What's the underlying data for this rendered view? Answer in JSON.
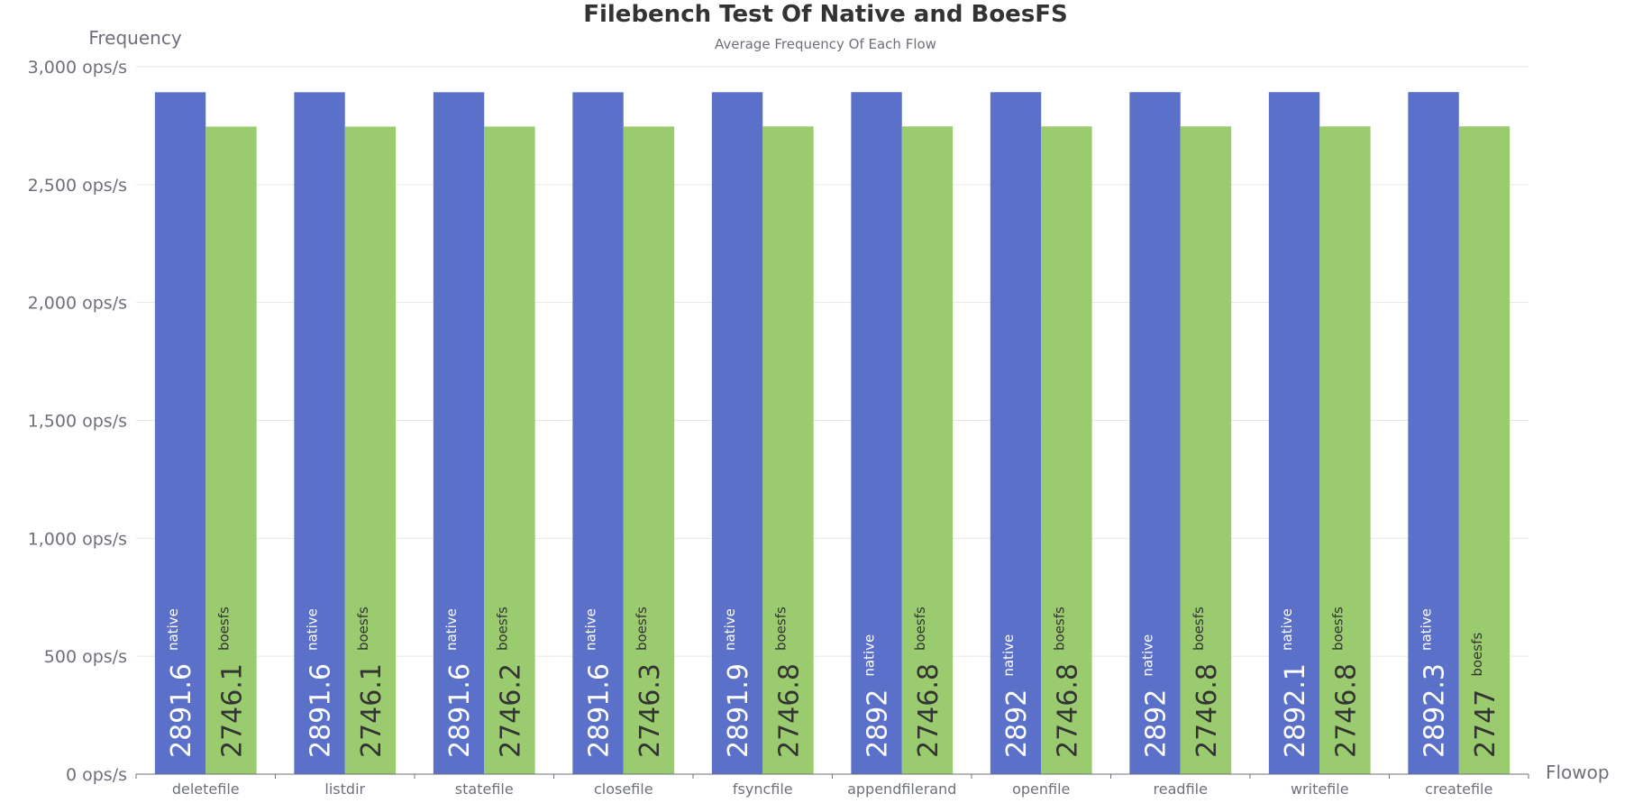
{
  "chart_data": {
    "type": "bar",
    "title": "Filebench Test Of Native and BoesFS",
    "subtitle": "Average Frequency Of Each Flow",
    "xlabel": "Flowop",
    "ylabel": "Frequency",
    "ylim": [
      0,
      3000
    ],
    "ytick_values": [
      0,
      500,
      1000,
      1500,
      2000,
      2500,
      3000
    ],
    "ytick_labels": [
      "0 ops/s",
      "500 ops/s",
      "1,000 ops/s",
      "1,500 ops/s",
      "2,000 ops/s",
      "2,500 ops/s",
      "3,000 ops/s"
    ],
    "grid": true,
    "categories": [
      "deletefile",
      "listdir",
      "statefile",
      "closefile",
      "fsyncfile",
      "appendfilerand",
      "openfile",
      "readfile",
      "writefile",
      "createfile"
    ],
    "series": [
      {
        "name": "native",
        "color": "#5b70c9",
        "label_color": "#ffffff",
        "values": [
          2891.6,
          2891.6,
          2891.6,
          2891.6,
          2891.9,
          2892,
          2892,
          2892,
          2892.1,
          2892.3
        ],
        "value_labels": [
          "2891.6",
          "2891.6",
          "2891.6",
          "2891.6",
          "2891.9",
          "2892",
          "2892",
          "2892",
          "2892.1",
          "2892.3"
        ]
      },
      {
        "name": "boesfs",
        "color": "#9acb6e",
        "label_color": "#333333",
        "values": [
          2746.1,
          2746.1,
          2746.2,
          2746.3,
          2746.8,
          2746.8,
          2746.8,
          2746.8,
          2746.8,
          2747
        ],
        "value_labels": [
          "2746.1",
          "2746.1",
          "2746.2",
          "2746.3",
          "2746.8",
          "2746.8",
          "2746.8",
          "2746.8",
          "2746.8",
          "2747"
        ]
      }
    ]
  }
}
